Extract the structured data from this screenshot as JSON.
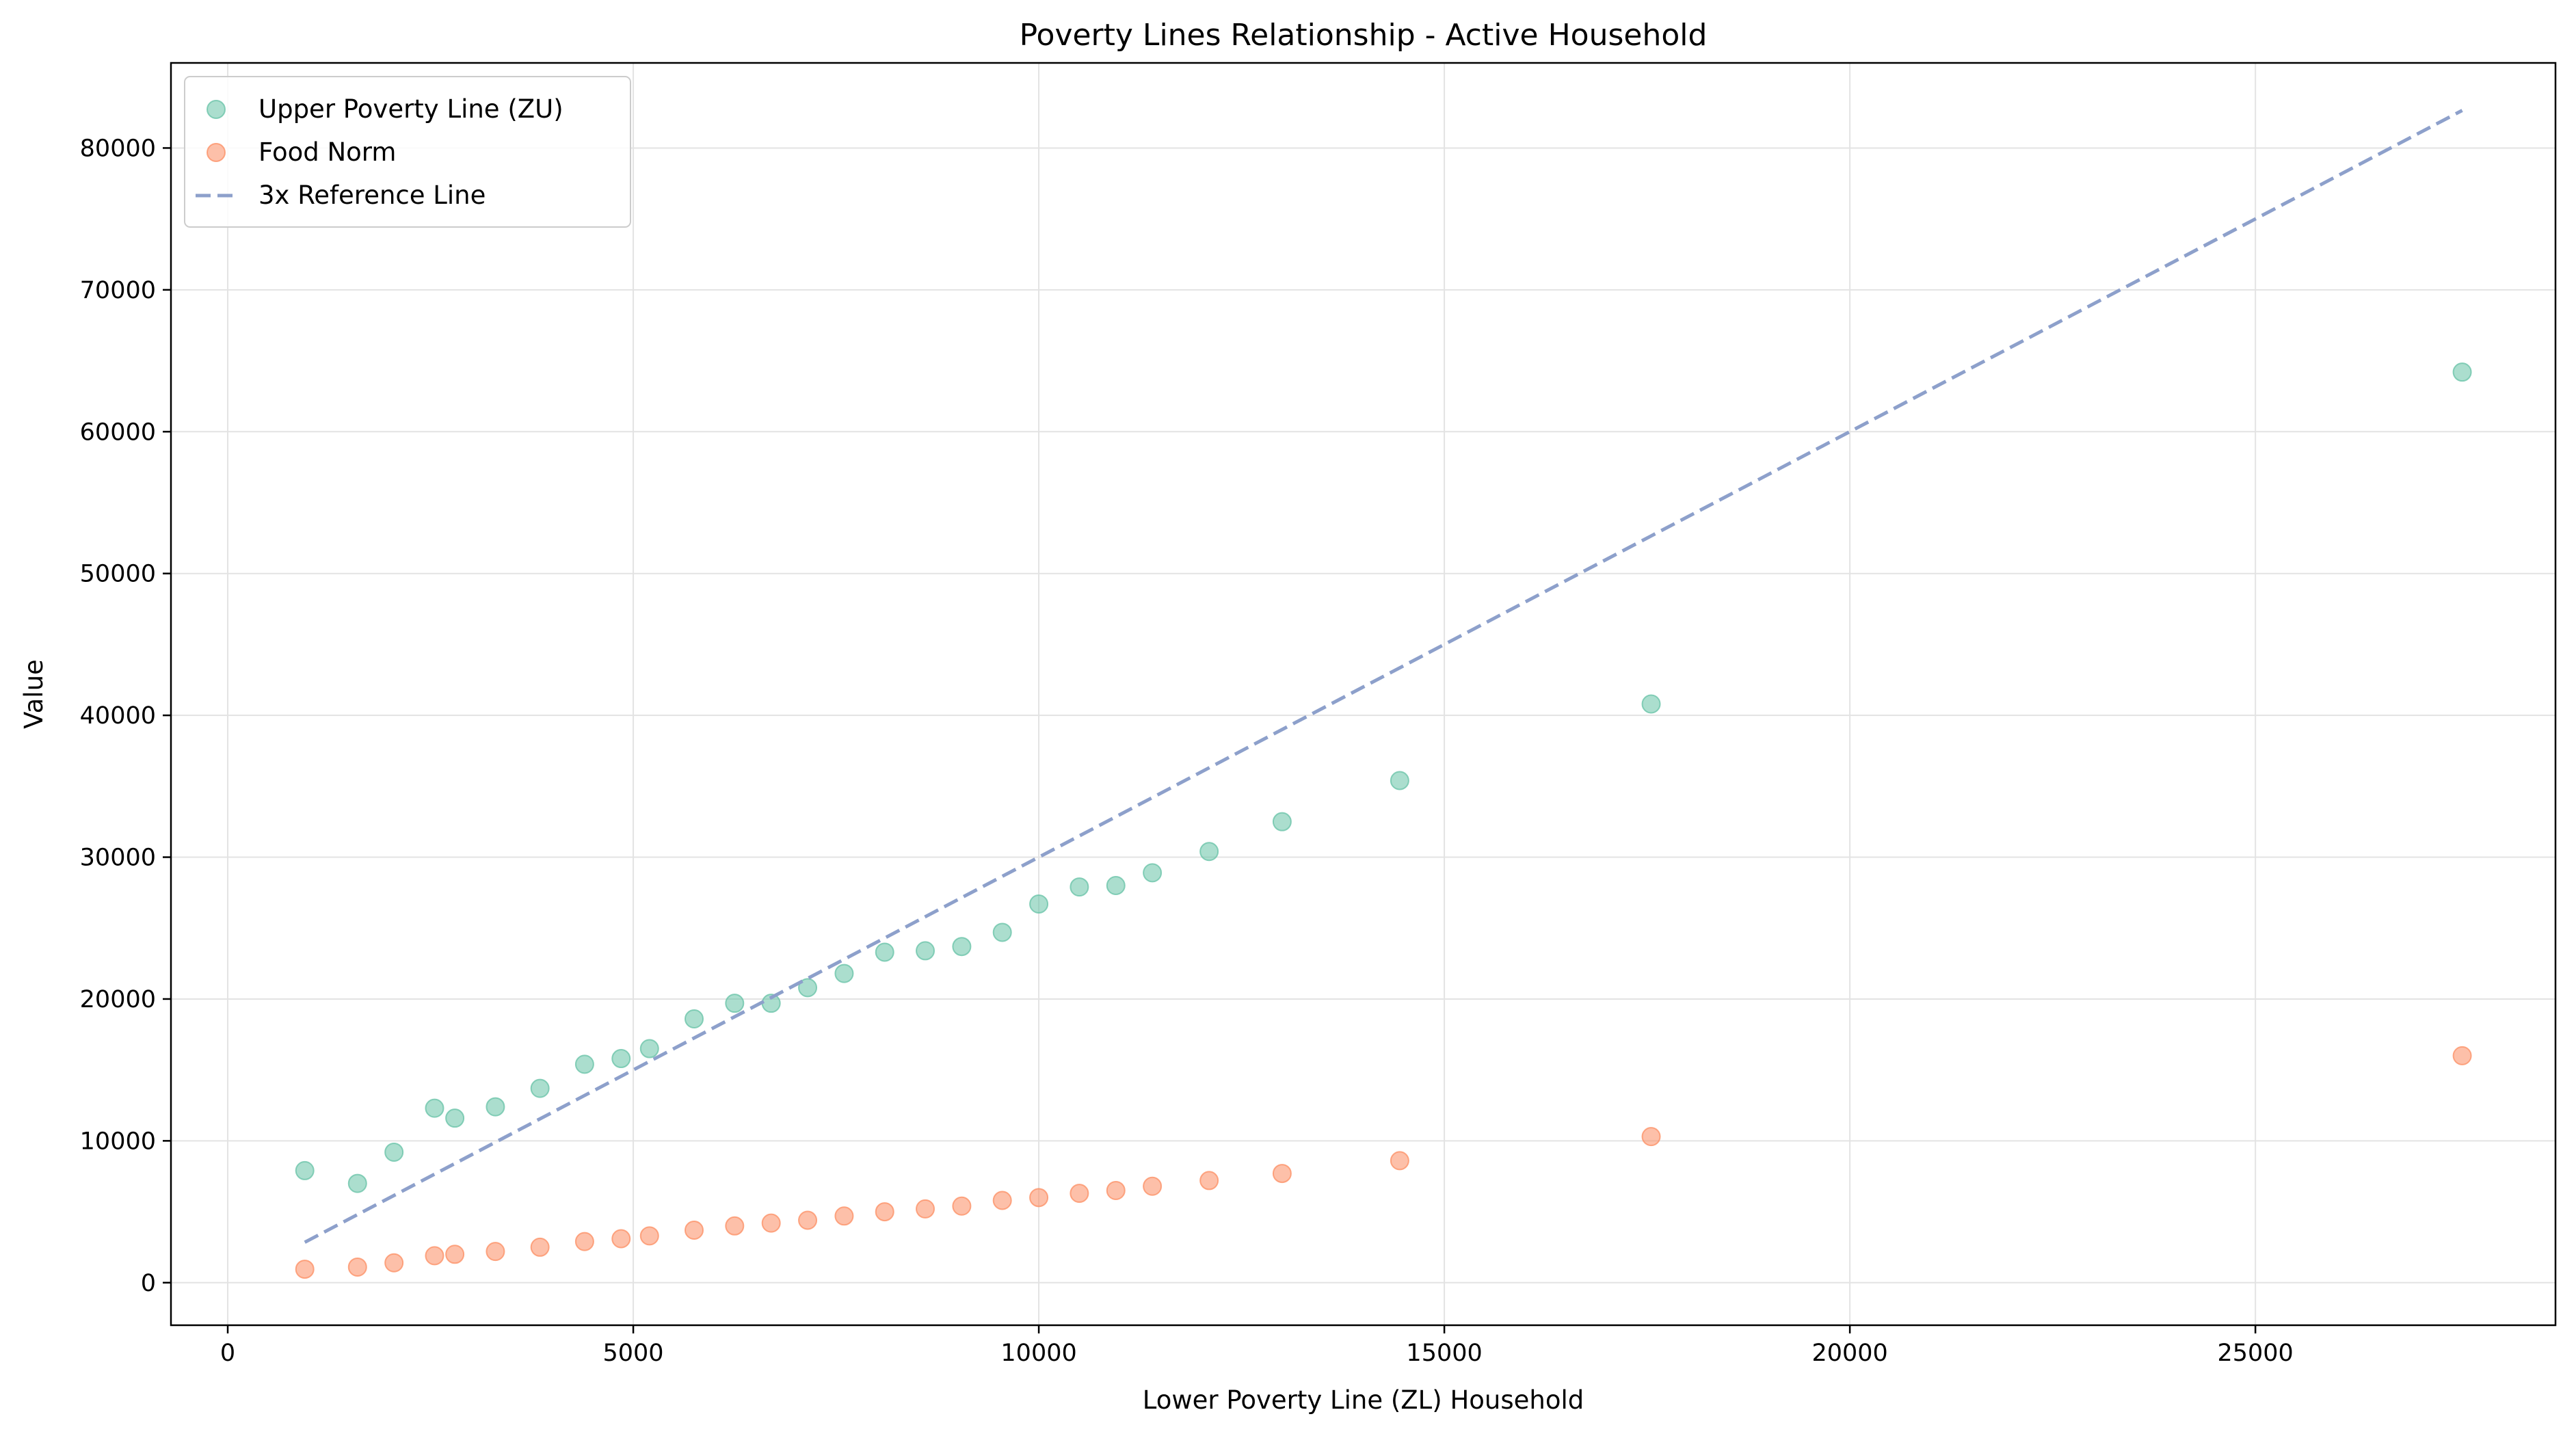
{
  "chart_data": {
    "type": "scatter",
    "title": "Poverty Lines Relationship - Active Household",
    "xlabel": "Lower Poverty Line (ZL) Household",
    "ylabel": "Value",
    "xlim": [
      -700,
      28700
    ],
    "ylim": [
      -3000,
      86000
    ],
    "xticks": [
      0,
      5000,
      10000,
      15000,
      20000,
      25000
    ],
    "yticks": [
      0,
      10000,
      20000,
      30000,
      40000,
      50000,
      60000,
      70000,
      80000
    ],
    "grid": true,
    "legend_position": "top-left",
    "x": [
      950,
      1600,
      2050,
      2550,
      2800,
      3300,
      3850,
      4400,
      4850,
      5200,
      5750,
      6250,
      6700,
      7150,
      7600,
      8100,
      8600,
      9050,
      9550,
      10000,
      10500,
      10950,
      11400,
      12100,
      13000,
      14450,
      17550,
      27550
    ],
    "series": [
      {
        "name": "Upper Poverty Line (ZU)",
        "kind": "scatter",
        "color": "#66c2a5",
        "values": [
          7900,
          7000,
          9200,
          12300,
          11600,
          12400,
          13700,
          15400,
          15800,
          16500,
          18600,
          19700,
          19700,
          20800,
          21800,
          23300,
          23400,
          23700,
          24700,
          26700,
          27900,
          28000,
          28900,
          30400,
          32500,
          35400,
          40800,
          64200
        ]
      },
      {
        "name": "Food Norm",
        "kind": "scatter",
        "color": "#fc8d62",
        "values": [
          950,
          1100,
          1400,
          1900,
          2000,
          2200,
          2500,
          2900,
          3100,
          3300,
          3700,
          4000,
          4200,
          4400,
          4700,
          5000,
          5200,
          5400,
          5800,
          6000,
          6300,
          6500,
          6800,
          7200,
          7700,
          8600,
          10300,
          16000
        ]
      },
      {
        "name": "3x Reference Line",
        "kind": "line",
        "color": "#8da0cb",
        "dash": "dashed",
        "points": [
          [
            950,
            2850
          ],
          [
            27550,
            82650
          ]
        ]
      }
    ]
  }
}
